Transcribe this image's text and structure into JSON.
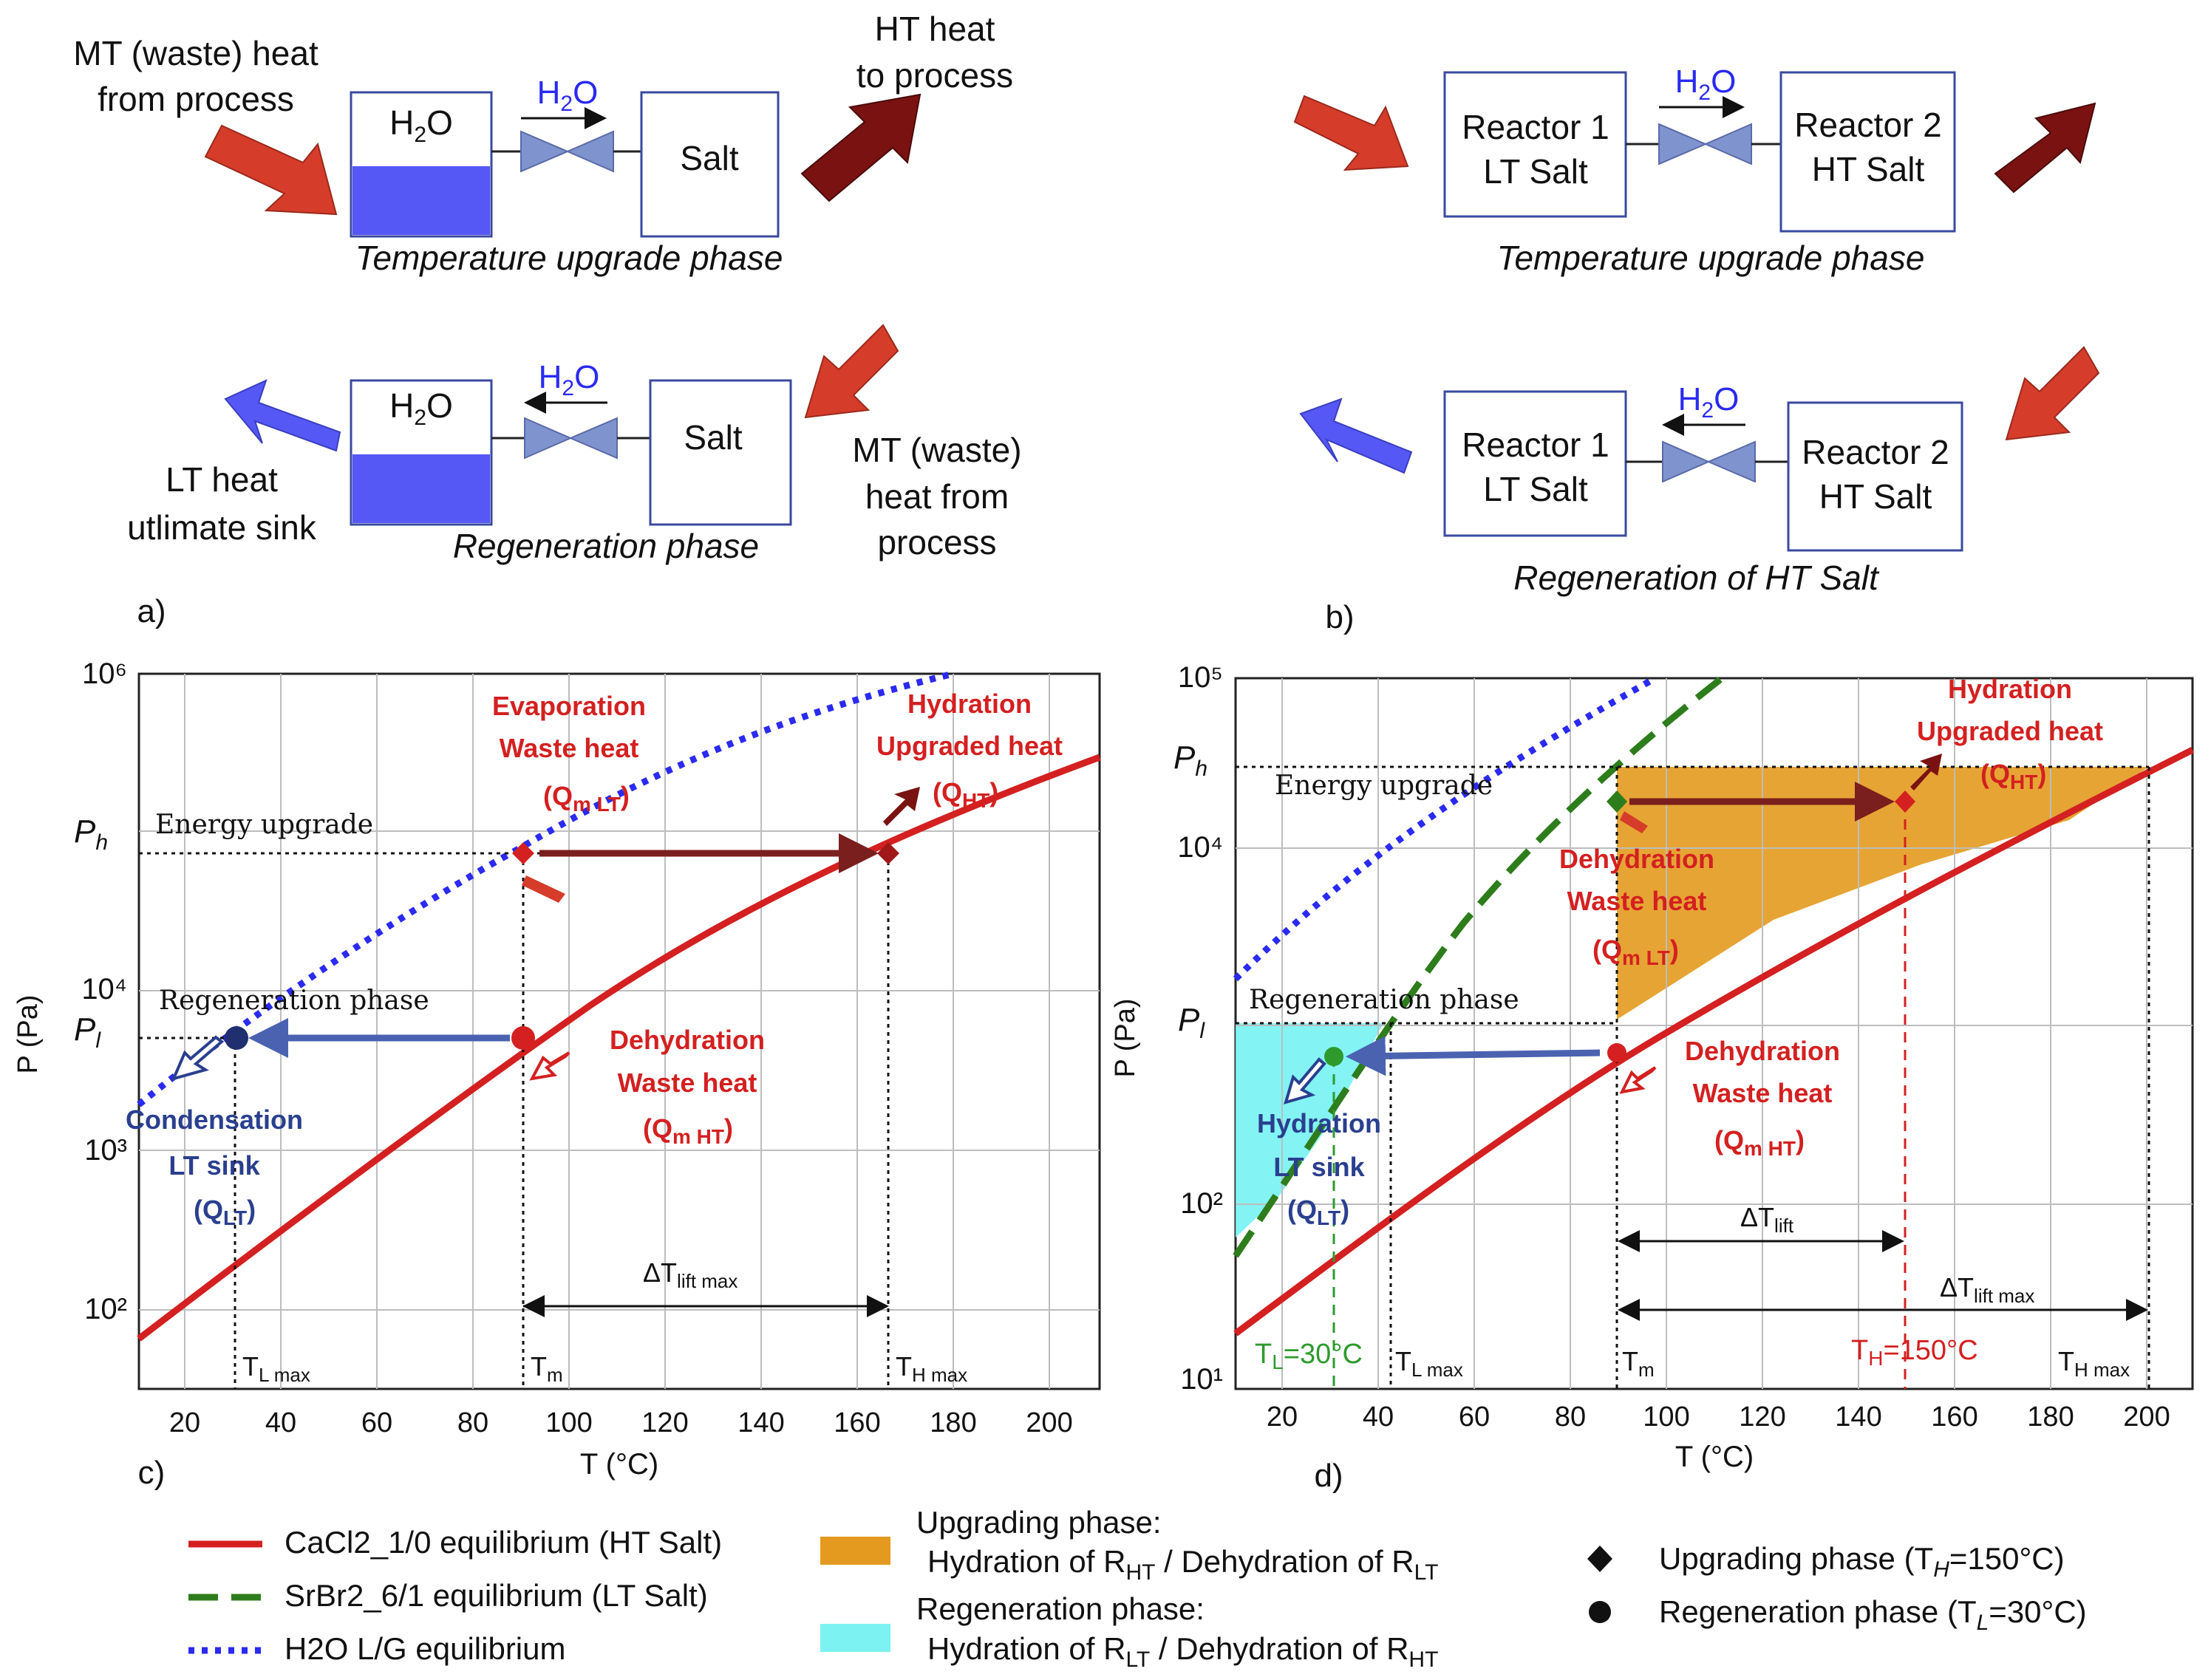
{
  "panel_a": {
    "label": "a)",
    "upgrade": {
      "in_label": [
        "MT (waste) heat",
        "from process"
      ],
      "out_label": [
        "HT heat",
        "to process"
      ],
      "left_box": "H2O",
      "flow_label": "H2O",
      "right_box": "Salt",
      "caption": "Temperature upgrade phase"
    },
    "regen": {
      "out_label": [
        "LT heat",
        "utlimate sink"
      ],
      "in_label": [
        "MT (waste)",
        "heat from",
        "process"
      ],
      "left_box": "H2O",
      "flow_label": "H2O",
      "right_box": "Salt",
      "caption": "Regeneration phase"
    }
  },
  "panel_b": {
    "label": "b)",
    "upgrade": {
      "left_box": [
        "Reactor 1",
        "LT Salt"
      ],
      "flow_label": "H2O",
      "right_box": [
        "Reactor 2",
        "HT Salt"
      ],
      "caption": "Temperature upgrade phase"
    },
    "regen": {
      "left_box": [
        "Reactor 1",
        "LT Salt"
      ],
      "flow_label": "H2O",
      "right_box": [
        "Reactor 2",
        "HT Salt"
      ],
      "caption": "Regeneration of HT Salt"
    }
  },
  "panel_c": {
    "label": "c)",
    "xlabel": "T (°C)",
    "ylabel": "P (Pa)",
    "xticks": [
      "20",
      "40",
      "60",
      "80",
      "100",
      "120",
      "140",
      "160",
      "180",
      "200"
    ],
    "yticks": [
      "10²",
      "10³",
      "10⁴",
      "10⁶"
    ],
    "p_h": "P",
    "p_h_sub": "h",
    "p_l": "P",
    "p_l_sub": "l",
    "energy_upgrade": "Energy upgrade",
    "regeneration_phase": "Regeneration phase",
    "evaporation": [
      "Evaporation",
      "Waste heat",
      "(Q"
    ],
    "hydration": [
      "Hydration",
      "Upgraded heat",
      "(Q"
    ],
    "dehydration": [
      "Dehydration",
      "Waste heat",
      "(Q"
    ],
    "condensation": [
      "Condensation",
      "LT sink",
      "(Q"
    ],
    "t_l_max": "T",
    "t_m": "T",
    "t_h_max": "T",
    "delta_t": "ΔT"
  },
  "panel_d": {
    "label": "d)",
    "xlabel": "T (°C)",
    "ylabel": "P (Pa)",
    "xticks": [
      "20",
      "40",
      "60",
      "80",
      "100",
      "120",
      "140",
      "160",
      "180",
      "200"
    ],
    "yticks": [
      "10¹",
      "10²",
      "10⁴",
      "10⁵"
    ],
    "energy_upgrade": "Energy upgrade",
    "regeneration_phase": "Regeneration phase",
    "hydration_hi": [
      "Hydration",
      "Upgraded heat",
      "(Q"
    ],
    "dehydration_mid": [
      "Dehydration",
      "Waste heat",
      "(Q"
    ],
    "dehydration_lo": [
      "Dehydration",
      "Waste heat",
      "(Q"
    ],
    "hydration_lo": [
      "Hydration",
      "LT sink",
      "(Q"
    ],
    "t_l": "T",
    "t_l_val": "=30°C",
    "t_h": "T",
    "t_h_val": "=150°C",
    "delta_t_lift": "ΔT",
    "delta_t_lift_max": "ΔT"
  },
  "legend": {
    "cacl2": "CaCl2_1/0 equilibrium (HT Salt)",
    "srbr2": "SrBr2_6/1 equilibrium (LT Salt)",
    "h2o": "H2O L/G equilibrium",
    "upgrading_title": "Upgrading phase:",
    "upgrading_body": "Hydration of R",
    "regeneration_title": "Regeneration phase:",
    "regeneration_body": "Hydration of R",
    "diamond_label": "Upgrading phase (T",
    "circle_label": "Regeneration phase (T"
  },
  "colors": {
    "red": "#d42020",
    "darkred": "#7a1212",
    "arrow_red": "#d63c2a",
    "water_blue": "#5558f5",
    "valve_blue": "#7f93cf",
    "orange": "#e39a1e",
    "cyan": "#7cf2f2",
    "green": "#2e7d1c",
    "dotted_blue": "#2a2af0",
    "navy": "#2a3f8f",
    "steel_arrow": "#4a62b0"
  }
}
